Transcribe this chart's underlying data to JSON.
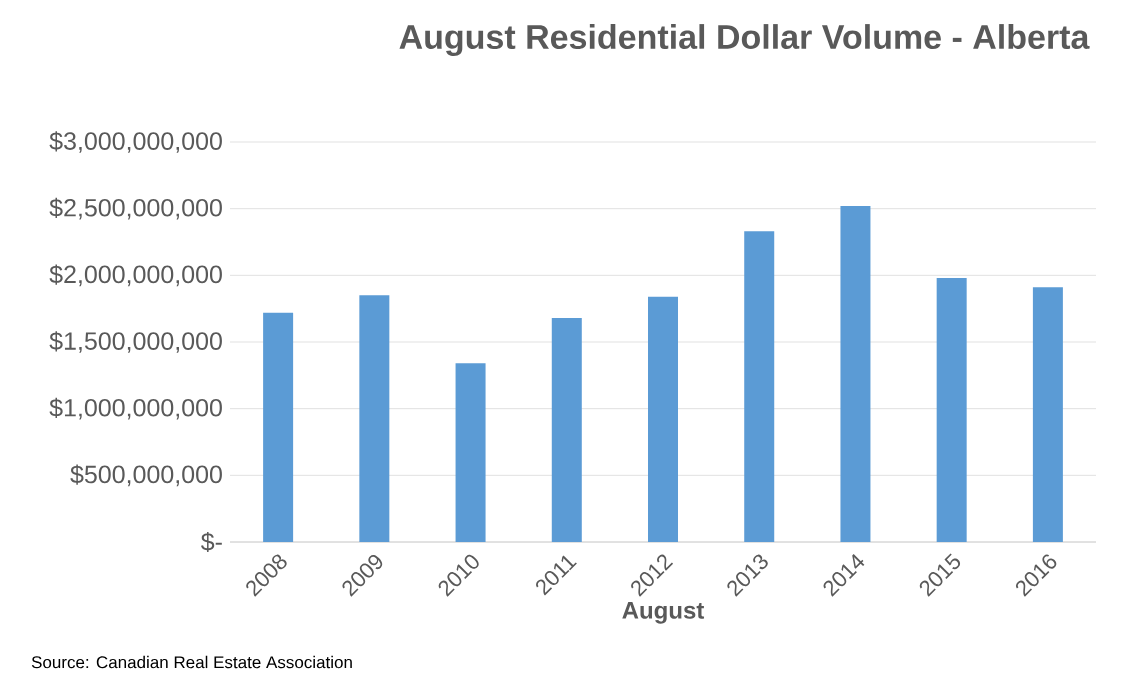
{
  "chart_data": {
    "type": "bar",
    "title": "August Residential Dollar Volume - Alberta",
    "xlabel": "August",
    "categories": [
      "2008",
      "2009",
      "2010",
      "2011",
      "2012",
      "2013",
      "2014",
      "2015",
      "2016"
    ],
    "values": [
      1720000000,
      1850000000,
      1340000000,
      1680000000,
      1840000000,
      2330000000,
      2520000000,
      1980000000,
      1910000000
    ],
    "color": "#5b9bd5",
    "ylim": [
      0,
      3000000000
    ],
    "yticks": [
      {
        "value": 0,
        "label": "$-"
      },
      {
        "value": 500000000,
        "label": "$500,000,000"
      },
      {
        "value": 1000000000,
        "label": "$1,000,000,000"
      },
      {
        "value": 1500000000,
        "label": "$1,500,000,000"
      },
      {
        "value": 2000000000,
        "label": "$2,000,000,000"
      },
      {
        "value": 2500000000,
        "label": "$2,500,000,000"
      },
      {
        "value": 3000000000,
        "label": "$3,000,000,000"
      }
    ],
    "grid": "y",
    "annotations": [
      "Source: Canadian Real Estate Association"
    ]
  }
}
